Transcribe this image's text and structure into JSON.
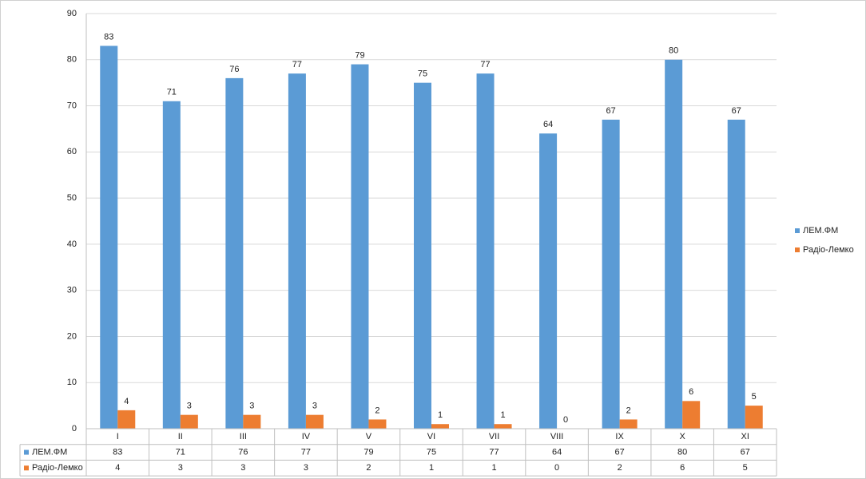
{
  "chart_data": {
    "type": "bar",
    "categories": [
      "I",
      "II",
      "III",
      "IV",
      "V",
      "VI",
      "VII",
      "VIII",
      "IX",
      "X",
      "XI"
    ],
    "series": [
      {
        "name": "ЛЕМ.ФМ",
        "color": "#5b9bd5",
        "values": [
          83,
          71,
          76,
          77,
          79,
          75,
          77,
          64,
          67,
          80,
          67
        ]
      },
      {
        "name": "Радіо-Лемко",
        "color": "#ed7d31",
        "values": [
          4,
          3,
          3,
          3,
          2,
          1,
          1,
          0,
          2,
          6,
          5
        ]
      }
    ],
    "ylim": [
      0,
      90
    ],
    "yticks": [
      0,
      10,
      20,
      30,
      40,
      50,
      60,
      70,
      80,
      90
    ],
    "grid": true,
    "legend": "right",
    "data_table": true
  }
}
